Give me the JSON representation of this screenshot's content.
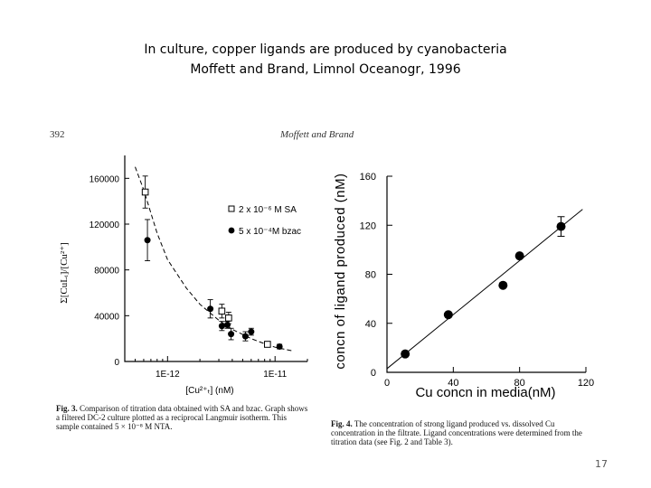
{
  "slide": {
    "title_line1": "In culture, copper ligands are produced by cyanobacteria",
    "title_line2": "Moffett and Brand, Limnol Oceanogr, 1996",
    "slide_number": "17"
  },
  "scan": {
    "page_number": "392",
    "running_head": "Moffett and Brand"
  },
  "captions": {
    "fig3_label": "Fig. 3.",
    "fig3_text": "Comparison of titration data obtained with SA and bzac. Graph shows a filtered DC-2 culture plotted as a reciprocal Langmuir isotherm. This sample contained 5 × 10⁻⁸ M NTA.",
    "fig4_label": "Fig. 4.",
    "fig4_text": "The concentration of strong ligand produced vs. dissolved Cu concentration in the filtrate. Ligand concentrations were determined from the titration data (see Fig. 2 and Table 3)."
  },
  "chart_data": [
    {
      "type": "scatter",
      "ylabel": "Σ[CuLᵢ]/[Cu²⁺]",
      "xlabel": "[Cu²⁺ₜ] (nM)",
      "xscale": "log",
      "xlim": [
        4e-13,
        2e-11
      ],
      "ylim": [
        0,
        180000
      ],
      "yticks": [
        "0",
        "40000",
        "80000",
        "120000",
        "160000"
      ],
      "xticks": [
        "1E-12",
        "1E-11"
      ],
      "grid": false,
      "legend_position": "upper-right",
      "series": [
        {
          "name": "2 x 10⁻⁶ M SA",
          "marker": "open-square",
          "x": [
            6.2e-13,
            3.2e-12,
            3.7e-12,
            8.5e-12
          ],
          "y": [
            148000,
            44000,
            38000,
            15000
          ],
          "yerr": [
            14000,
            6000,
            5000,
            2000
          ]
        },
        {
          "name": "5 x 10⁻⁴M bzac",
          "marker": "filled-circle",
          "x": [
            6.5e-13,
            2.5e-12,
            3.2e-12,
            3.6e-12,
            3.9e-12,
            5.3e-12,
            6e-12,
            1.1e-11
          ],
          "y": [
            106000,
            46000,
            31000,
            32000,
            24000,
            22000,
            26000,
            13000
          ],
          "yerr": [
            18000,
            8000,
            4000,
            3000,
            5000,
            4000,
            3000,
            2000
          ]
        },
        {
          "name": "",
          "style": "dashed-fit",
          "x": [
            5e-13,
            6e-13,
            8e-13,
            1e-12,
            1.5e-12,
            2e-12,
            3e-12,
            4e-12,
            6e-12,
            8e-12,
            1e-11,
            1.5e-11
          ],
          "y": [
            170000,
            150000,
            112000,
            89000,
            64000,
            50000,
            36000,
            28000,
            20000,
            15500,
            12500,
            9000
          ]
        }
      ]
    },
    {
      "type": "scatter",
      "ylabel": "concn of ligand produced (nM)",
      "xlabel": "Cu concn in media(nM)",
      "xlim": [
        0,
        120
      ],
      "ylim": [
        0,
        160
      ],
      "xticks": [
        "0",
        "40",
        "80",
        "120"
      ],
      "yticks": [
        "0",
        "40",
        "80",
        "120",
        "160"
      ],
      "grid": false,
      "series": [
        {
          "name": "",
          "marker": "filled-circle",
          "x": [
            11,
            37,
            70,
            80,
            105
          ],
          "y": [
            15,
            47,
            71,
            95,
            119
          ],
          "yerr": [
            0,
            0,
            0,
            0,
            8
          ]
        },
        {
          "name": "",
          "style": "fit-line",
          "x": [
            0,
            118
          ],
          "y": [
            3,
            133
          ]
        }
      ]
    }
  ]
}
